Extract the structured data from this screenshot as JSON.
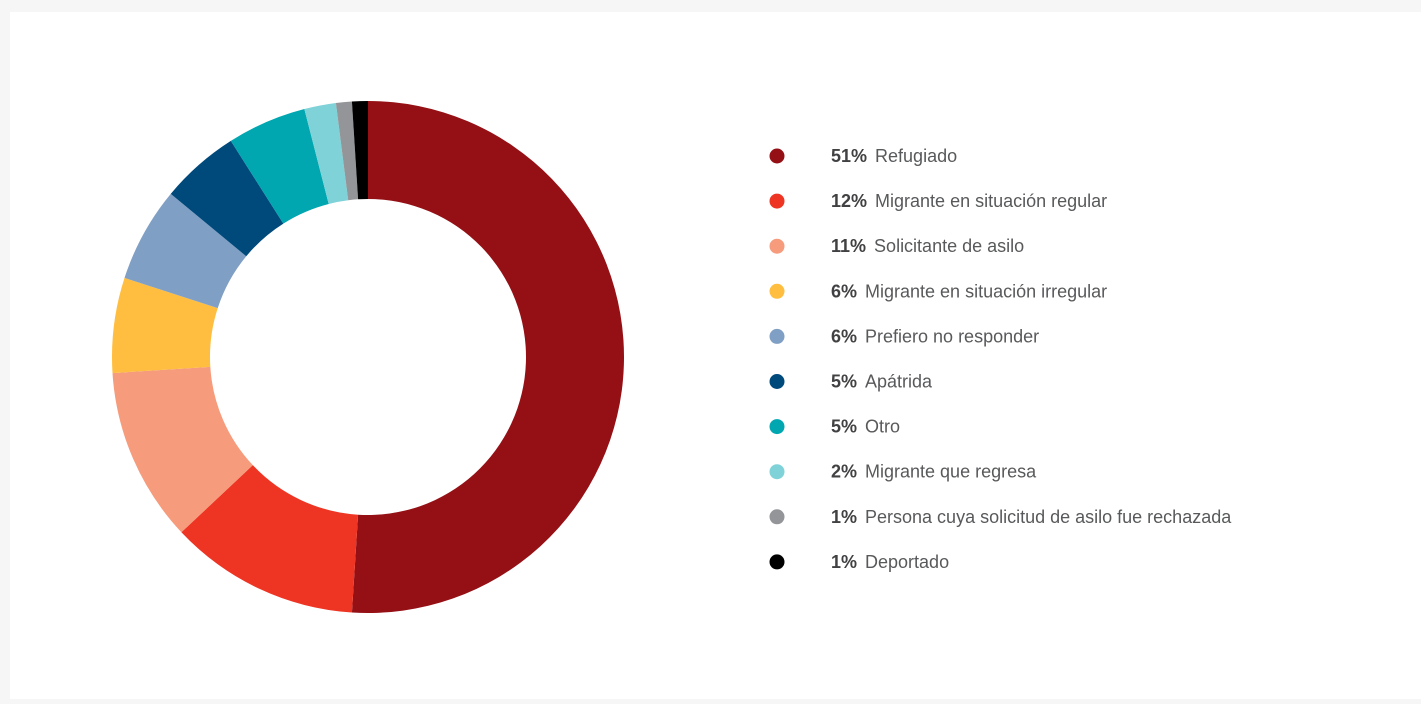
{
  "chart_data": {
    "type": "donut",
    "categories": [
      "Refugiado",
      "Migrante en situación regular",
      "Solicitante de asilo",
      "Migrante en situación irregular",
      "Prefiero no responder",
      "Apátrida",
      "Otro",
      "Migrante que regresa",
      "Persona cuya solicitud de asilo fue rechazada",
      "Deportado"
    ],
    "values": [
      51,
      12,
      11,
      6,
      6,
      5,
      5,
      2,
      1,
      1
    ],
    "value_labels": [
      "51%",
      "12%",
      "11%",
      "6%",
      "6%",
      "5%",
      "5%",
      "2%",
      "1%",
      "1%"
    ],
    "colors": [
      "#941015",
      "#ee3524",
      "#f69b7c",
      "#ffbe40",
      "#809fc4",
      "#00497b",
      "#00a6b0",
      "#7fd2d7",
      "#939598",
      "#000000"
    ],
    "legend": "right"
  }
}
